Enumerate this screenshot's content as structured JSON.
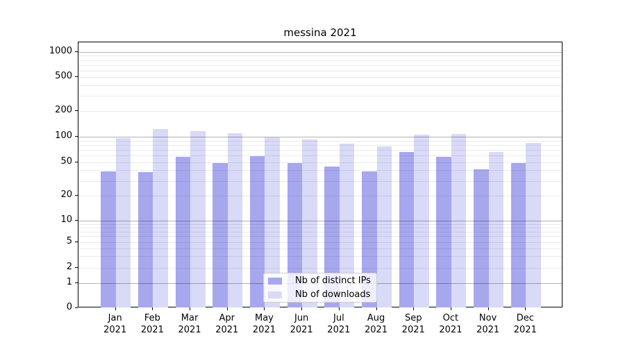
{
  "title": "messina 2021",
  "colors": {
    "ips_bar": "#a7a7ee",
    "downloads_bar": "#d9d9f8",
    "axis": "#000000",
    "background": "#ffffff"
  },
  "legend": {
    "items": [
      {
        "label": "Nb of distinct IPs",
        "color_key": "ips_bar"
      },
      {
        "label": "Nb of downloads",
        "color_key": "downloads_bar"
      }
    ]
  },
  "chart_data": {
    "type": "bar",
    "title": "messina 2021",
    "categories": [
      "Jan 2021",
      "Feb 2021",
      "Mar 2021",
      "Apr 2021",
      "May 2021",
      "Jun 2021",
      "Jul 2021",
      "Aug 2021",
      "Sep 2021",
      "Oct 2021",
      "Nov 2021",
      "Dec 2021"
    ],
    "month_labels": [
      "Jan",
      "Feb",
      "Mar",
      "Apr",
      "May",
      "Jun",
      "Jul",
      "Aug",
      "Sep",
      "Oct",
      "Nov",
      "Dec"
    ],
    "year_label": "2021",
    "series": [
      {
        "name": "Nb of distinct IPs",
        "color_key": "ips_bar",
        "values": [
          39,
          38,
          58,
          49,
          59,
          49,
          44,
          39,
          66,
          58,
          41,
          49
        ]
      },
      {
        "name": "Nb of downloads",
        "color_key": "downloads_bar",
        "values": [
          96,
          123,
          117,
          110,
          98,
          92,
          83,
          77,
          105,
          108,
          66,
          85
        ]
      }
    ],
    "yscale": "symlog",
    "y_ticks": [
      0,
      1,
      2,
      5,
      10,
      20,
      50,
      100,
      200,
      500,
      1000
    ],
    "y_tick_labels": [
      "0",
      "1",
      "2",
      "5",
      "10",
      "20",
      "50",
      "100",
      "200",
      "500",
      "1000"
    ],
    "ylim": [
      0,
      1300
    ],
    "xlabel": "",
    "ylabel": "",
    "grid": true,
    "legend_position": "lower center"
  }
}
